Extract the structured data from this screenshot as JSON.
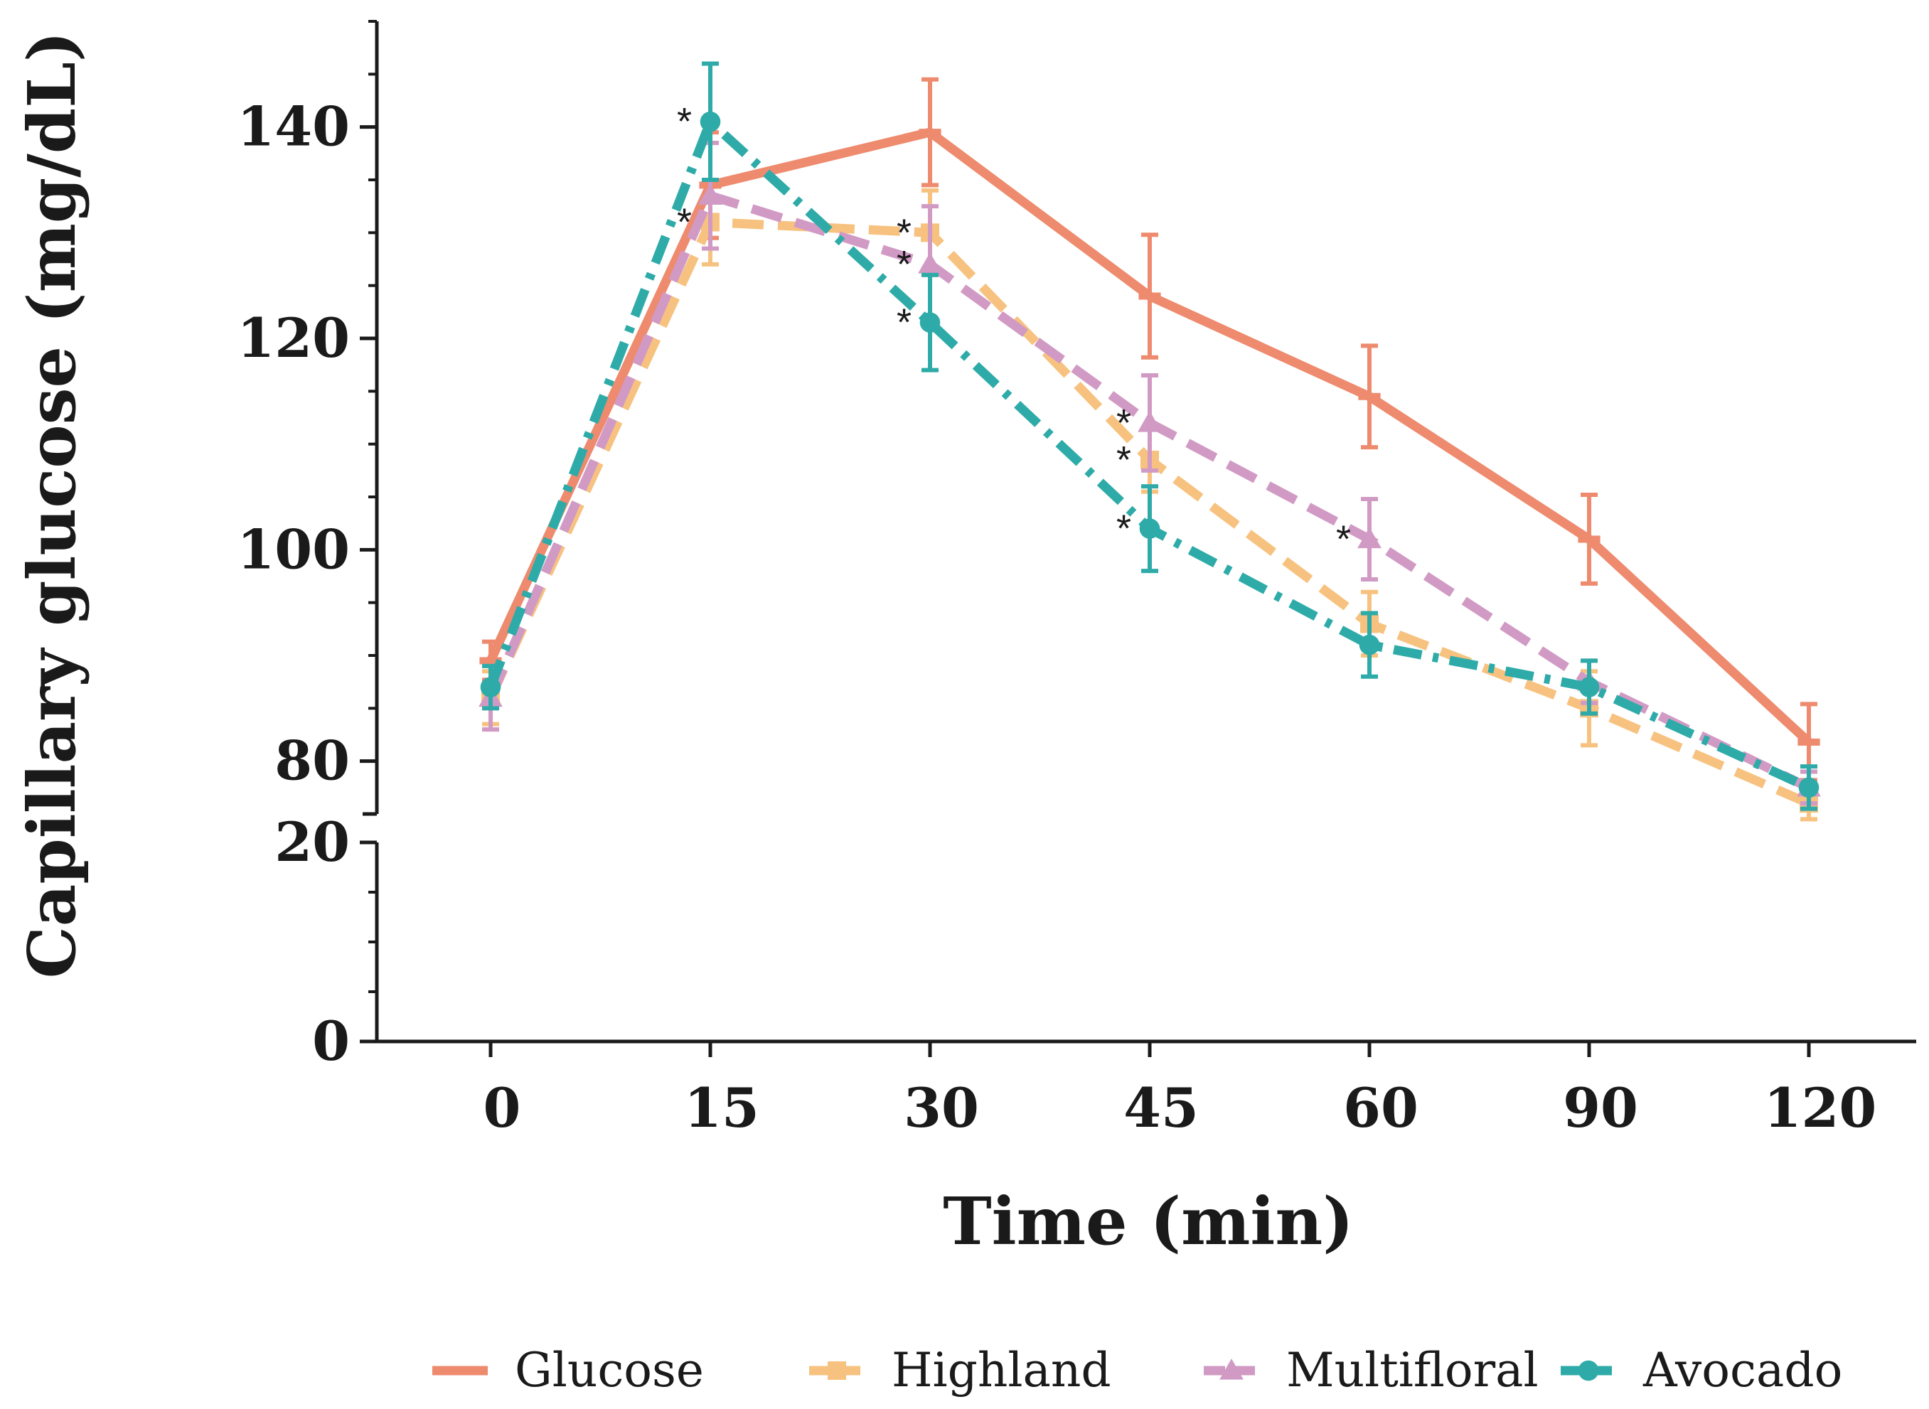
{
  "chart_data": {
    "type": "line",
    "title": "",
    "xlabel": "Time (min)",
    "ylabel": "Capillary glucose (mg/dL)",
    "categories": [
      "0",
      "15",
      "30",
      "45",
      "60",
      "90",
      "120"
    ],
    "y_ticks_upper": [
      "80",
      "100",
      "120",
      "140"
    ],
    "y_ticks_lower": [
      "0",
      "20"
    ],
    "ylim_upper": [
      75,
      150
    ],
    "ylim_lower": [
      0,
      20
    ],
    "axis_break": true,
    "grid": false,
    "legend_position": "bottom",
    "series": [
      {
        "name": "Glucose",
        "color": "#EE8A6E",
        "line_style": "solid",
        "marker": "bar",
        "values": [
          89.5,
          134.5,
          139.5,
          124,
          114.5,
          101,
          81.8
        ],
        "errors": [
          1.8,
          5,
          5,
          5.8,
          4.8,
          4.2,
          3.6
        ]
      },
      {
        "name": "Highland",
        "color": "#F7C27F",
        "line_style": "dashed",
        "marker": "square",
        "values": [
          86,
          131,
          130,
          108.5,
          93,
          85,
          76
        ],
        "errors": [
          2.5,
          4,
          4,
          3,
          3,
          3.5,
          1.5
        ]
      },
      {
        "name": "Multifloral",
        "color": "#D19AC4",
        "line_style": "dashed",
        "marker": "triangle",
        "values": [
          86,
          133.5,
          127,
          112,
          101,
          87.5,
          77.5
        ],
        "errors": [
          3,
          5,
          5.5,
          4.5,
          3.8,
          2,
          1.5
        ]
      },
      {
        "name": "Avocado",
        "color": "#2EABA8",
        "line_style": "dashdot",
        "marker": "circle",
        "values": [
          87,
          140.5,
          121.5,
          102,
          91,
          87,
          77.5
        ],
        "errors": [
          2,
          5.5,
          4.5,
          4,
          3,
          2.5,
          2
        ]
      }
    ],
    "annotations": [
      {
        "text": "*",
        "time": "15",
        "series": "Avocado"
      },
      {
        "text": "*",
        "time": "15",
        "series": "Highland"
      },
      {
        "text": "*",
        "time": "30",
        "series": "Highland"
      },
      {
        "text": "*",
        "time": "30",
        "series": "Multifloral"
      },
      {
        "text": "*",
        "time": "30",
        "series": "Avocado"
      },
      {
        "text": "*",
        "time": "45",
        "series": "Multifloral"
      },
      {
        "text": "*",
        "time": "45",
        "series": "Highland"
      },
      {
        "text": "*",
        "time": "45",
        "series": "Avocado"
      },
      {
        "text": "*",
        "time": "60",
        "series": "Multifloral"
      }
    ]
  }
}
